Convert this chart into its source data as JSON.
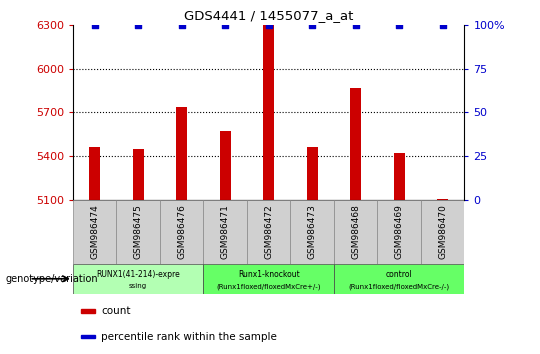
{
  "title": "GDS4441 / 1455077_a_at",
  "samples": [
    "GSM986474",
    "GSM986475",
    "GSM986476",
    "GSM986471",
    "GSM986472",
    "GSM986473",
    "GSM986468",
    "GSM986469",
    "GSM986470"
  ],
  "counts": [
    5460,
    5450,
    5740,
    5570,
    6300,
    5460,
    5870,
    5420,
    5110
  ],
  "y_min": 5100,
  "y_max": 6300,
  "y_ticks": [
    5100,
    5400,
    5700,
    6000,
    6300
  ],
  "right_y_ticks": [
    0,
    25,
    50,
    75,
    100
  ],
  "right_y_labels": [
    "0",
    "25",
    "50",
    "75",
    "100%"
  ],
  "bar_color": "#cc0000",
  "dot_color": "#0000cc",
  "bar_width": 0.25,
  "groups": [
    {
      "label_top": "RUNX1(41-214)-expre",
      "label_bot": "ssing",
      "start": 0,
      "end": 3,
      "color": "#b3ffb3"
    },
    {
      "label_top": "Runx1-knockout",
      "label_bot": "(Runx1floxed/floxedMxCre+/-)",
      "start": 3,
      "end": 6,
      "color": "#66ff66"
    },
    {
      "label_top": "control",
      "label_bot": "(Runx1floxed/floxedMxCre-/-)",
      "start": 6,
      "end": 9,
      "color": "#66ff66"
    }
  ],
  "tick_label_color_left": "#cc0000",
  "tick_label_color_right": "#0000cc",
  "sample_box_color": "#d0d0d0",
  "legend_items": [
    {
      "color": "#cc0000",
      "label": "count"
    },
    {
      "color": "#0000cc",
      "label": "percentile rank within the sample"
    }
  ]
}
